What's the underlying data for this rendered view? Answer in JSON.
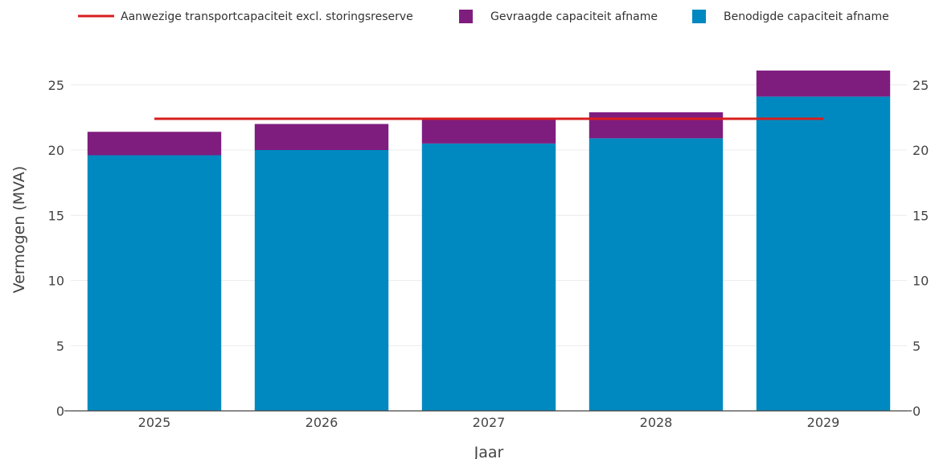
{
  "chart_data": {
    "type": "bar",
    "stacked": true,
    "categories": [
      "2025",
      "2026",
      "2027",
      "2028",
      "2029"
    ],
    "series": [
      {
        "name": "Benodigde capaciteit afname",
        "values": [
          19.6,
          20.0,
          20.5,
          20.9,
          24.1
        ],
        "color": "#0089c0"
      },
      {
        "name": "Gevraagde capaciteit afname",
        "values": [
          1.8,
          2.0,
          1.9,
          2.0,
          2.0
        ],
        "color": "#7f1d7f"
      }
    ],
    "line": {
      "name": "Aanwezige transportcapaciteit excl. storingsreserve",
      "value": 22.4,
      "color": "#d81e1e"
    },
    "xlabel": "Jaar",
    "ylabel": "Vermogen (MVA)",
    "ylim": [
      0,
      26.5
    ],
    "yticks": [
      0,
      5,
      10,
      15,
      20,
      25
    ],
    "grid": true,
    "legend_position": "top"
  }
}
